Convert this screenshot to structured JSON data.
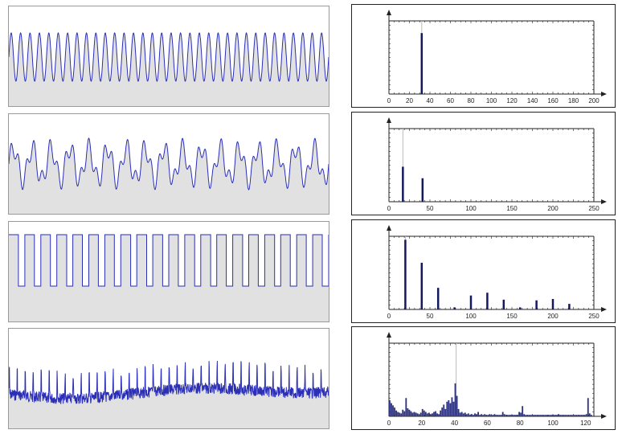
{
  "colors": {
    "waveform": "#2b2fb8",
    "wave_fill": "#e1e1e1",
    "bar": "#14195e",
    "bar_light": "#2e3380",
    "axis": "#222222",
    "guide": "#bbbbbb"
  },
  "chart_data": [
    {
      "type": "line",
      "signal": "sine",
      "cycles": 34,
      "grid": false
    },
    {
      "type": "bar",
      "xlim": [
        0,
        200
      ],
      "xticks": [
        "0",
        "20",
        "40",
        "60",
        "80",
        "100",
        "120",
        "140",
        "160",
        "180",
        "200"
      ],
      "ylim": [
        0,
        1.2
      ],
      "x": [
        32
      ],
      "values": [
        1.0
      ],
      "guide_x": 32,
      "grid": false
    },
    {
      "type": "line",
      "signal": "two-tone",
      "components": [
        {
          "cycles": 17,
          "amplitude": 1.0
        },
        {
          "cycles": 41,
          "amplitude": 0.6
        }
      ],
      "grid": false
    },
    {
      "type": "bar",
      "xlim": [
        0,
        250
      ],
      "xticks": [
        "0",
        "50",
        "100",
        "150",
        "200",
        "250"
      ],
      "ylim": [
        0,
        1.4
      ],
      "x": [
        17,
        41
      ],
      "values": [
        0.67,
        0.45
      ],
      "guide_x": 17,
      "grid": false
    },
    {
      "type": "line",
      "signal": "square",
      "cycles": 20,
      "duty": 0.6,
      "grid": false
    },
    {
      "type": "bar",
      "xlim": [
        0,
        250
      ],
      "xticks": [
        "0",
        "50",
        "100",
        "150",
        "200",
        "250"
      ],
      "ylim": [
        0,
        1.05
      ],
      "x": [
        20,
        40,
        60,
        80,
        100,
        120,
        140,
        160,
        180,
        200,
        220
      ],
      "values": [
        1.0,
        0.67,
        0.31,
        0.03,
        0.2,
        0.24,
        0.14,
        0.03,
        0.13,
        0.15,
        0.08
      ],
      "guide_x": 20,
      "grid": false
    },
    {
      "type": "line",
      "signal": "noisy-pulse-train",
      "pulses": 40,
      "grid": false
    },
    {
      "type": "bar",
      "xlim": [
        0,
        125
      ],
      "xticks": [
        "0",
        "20",
        "40",
        "60",
        "80",
        "100",
        "120"
      ],
      "ylim": [
        0,
        1.0
      ],
      "x": [
        0,
        1,
        2,
        3,
        4,
        5,
        6,
        7,
        8,
        9,
        10,
        11,
        12,
        13,
        14,
        15,
        16,
        17,
        18,
        19,
        20,
        21,
        22,
        23,
        24,
        25,
        26,
        27,
        28,
        29,
        30,
        31,
        32,
        33,
        34,
        35,
        36,
        37,
        38,
        39,
        40,
        41,
        42,
        43,
        44,
        45,
        46,
        47,
        48,
        49,
        50,
        51,
        52,
        53,
        54,
        55,
        56,
        57,
        58,
        59,
        60,
        61,
        62,
        63,
        64,
        65,
        66,
        67,
        68,
        69,
        70,
        71,
        72,
        73,
        74,
        75,
        76,
        77,
        78,
        79,
        80,
        81,
        82,
        83,
        84,
        85,
        86,
        87,
        88,
        89,
        90,
        91,
        92,
        93,
        94,
        95,
        96,
        97,
        98,
        99,
        100,
        101,
        102,
        103,
        104,
        105,
        106,
        107,
        108,
        109,
        110,
        111,
        112,
        113,
        114,
        115,
        116,
        117,
        118,
        119,
        120,
        121,
        122,
        123
      ],
      "values": [
        0.22,
        0.18,
        0.15,
        0.12,
        0.08,
        0.06,
        0.05,
        0.04,
        0.09,
        0.07,
        0.25,
        0.11,
        0.09,
        0.07,
        0.05,
        0.06,
        0.05,
        0.04,
        0.03,
        0.05,
        0.1,
        0.08,
        0.06,
        0.04,
        0.05,
        0.03,
        0.04,
        0.06,
        0.07,
        0.04,
        0.03,
        0.08,
        0.12,
        0.16,
        0.1,
        0.2,
        0.22,
        0.18,
        0.26,
        0.2,
        0.45,
        0.28,
        0.1,
        0.05,
        0.06,
        0.04,
        0.05,
        0.03,
        0.04,
        0.02,
        0.03,
        0.02,
        0.04,
        0.03,
        0.06,
        0.02,
        0.03,
        0.02,
        0.03,
        0.02,
        0.02,
        0.03,
        0.02,
        0.02,
        0.03,
        0.02,
        0.02,
        0.02,
        0.02,
        0.06,
        0.03,
        0.02,
        0.02,
        0.02,
        0.02,
        0.02,
        0.02,
        0.02,
        0.02,
        0.06,
        0.05,
        0.14,
        0.03,
        0.02,
        0.02,
        0.02,
        0.02,
        0.02,
        0.02,
        0.02,
        0.02,
        0.02,
        0.02,
        0.02,
        0.02,
        0.02,
        0.02,
        0.02,
        0.02,
        0.02,
        0.02,
        0.02,
        0.02,
        0.03,
        0.02,
        0.02,
        0.02,
        0.02,
        0.02,
        0.02,
        0.02,
        0.02,
        0.02,
        0.02,
        0.02,
        0.02,
        0.02,
        0.02,
        0.02,
        0.02,
        0.03,
        0.25,
        0.04,
        0.02
      ],
      "guide_x": 41,
      "grid": false
    }
  ]
}
